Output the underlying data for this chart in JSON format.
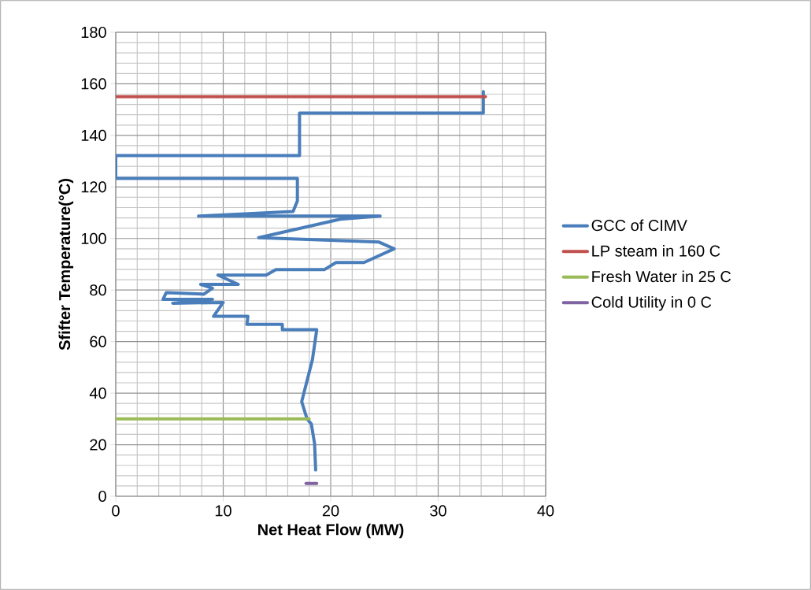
{
  "chart_data": {
    "type": "line",
    "xlabel": "Net Heat Flow (MW)",
    "ylabel": "Sfifter Temperature(°C)",
    "xlim": [
      0,
      40
    ],
    "ylim": [
      0,
      180
    ],
    "xticks": [
      0,
      10,
      20,
      30,
      40
    ],
    "yticks": [
      0,
      20,
      40,
      60,
      80,
      100,
      120,
      140,
      160,
      180
    ],
    "grid": true,
    "legend": "right",
    "marker": "none",
    "line_style": "solid",
    "series": [
      {
        "name": "GCC of CIMV",
        "color": "#4a7ebb",
        "x": [
          34.2,
          34.2,
          17.1,
          17.1,
          0,
          0,
          16.9,
          16.9,
          16.5,
          7.7,
          24.6,
          20.9,
          13.3,
          24.5,
          25.9,
          23.1,
          20.5,
          19.4,
          14.9,
          14.0,
          9.5,
          11.4,
          7.9,
          9.0,
          8.2,
          4.7,
          4.4,
          9.0,
          5.3,
          10.0,
          9.1,
          12.3,
          12.2,
          15.5,
          15.5,
          18.7,
          18.3,
          17.3,
          17.8,
          18.2,
          18.5,
          18.6
        ],
        "values": [
          157,
          148.7,
          148.7,
          132.2,
          132.2,
          123.3,
          123.3,
          114.6,
          110.5,
          108.7,
          108.7,
          107.5,
          100.3,
          98.6,
          96.0,
          90.7,
          90.7,
          87.9,
          87.9,
          85.8,
          85.8,
          82.2,
          82.2,
          80.7,
          78.4,
          79,
          76.4,
          76.4,
          74.9,
          75.2,
          69.8,
          69.8,
          66.7,
          66.7,
          64.6,
          64.6,
          53.0,
          36.7,
          30.0,
          28,
          20.4,
          10.2
        ]
      },
      {
        "name": "LP steam in 160 C",
        "color": "#c0504d",
        "x": [
          0,
          34.4
        ],
        "values": [
          155,
          155
        ]
      },
      {
        "name": "Fresh Water in 25 C",
        "color": "#9bbb59",
        "x": [
          0,
          18
        ],
        "values": [
          30,
          30
        ]
      },
      {
        "name": "Cold Utility in 0 C",
        "color": "#8064a2",
        "x": [
          17.7,
          18.7
        ],
        "values": [
          5,
          5
        ]
      }
    ]
  }
}
